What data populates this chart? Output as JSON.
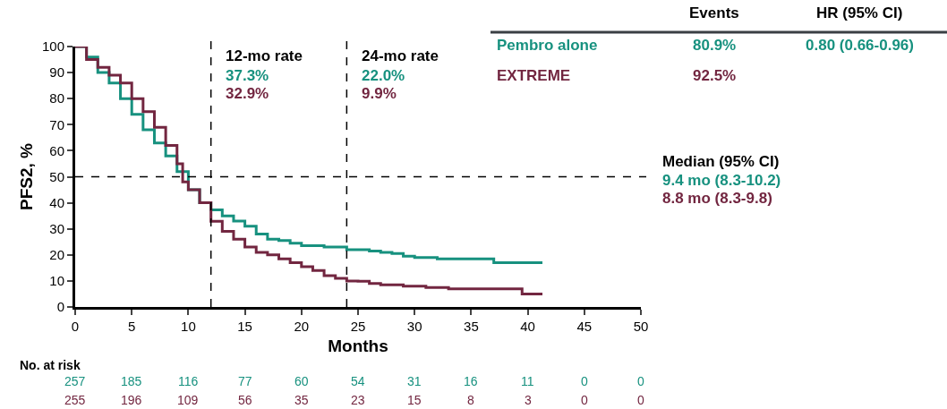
{
  "chart_data": {
    "type": "step",
    "xlabel": "Months",
    "ylabel": "PFS2, %",
    "xlim": [
      0,
      50
    ],
    "xticks": [
      0,
      5,
      10,
      15,
      20,
      25,
      30,
      35,
      40,
      45,
      50
    ],
    "ylim": [
      0,
      100
    ],
    "yticks": [
      0,
      10,
      20,
      30,
      40,
      50,
      60,
      70,
      80,
      90,
      100
    ],
    "legend": false,
    "marker": "none",
    "line_style": "solid",
    "series": [
      {
        "name": "Pembro alone",
        "color": "#17917f",
        "x": [
          0,
          1,
          2,
          3,
          4,
          5,
          6,
          7,
          8,
          9,
          10,
          11,
          12,
          13,
          14,
          15,
          16,
          17,
          18,
          19,
          20,
          22,
          24,
          26,
          27,
          28,
          29,
          30,
          32,
          34,
          36,
          37,
          41.3
        ],
        "values": [
          100,
          96,
          90,
          86,
          80,
          74,
          68,
          63,
          58,
          52,
          45,
          40,
          37.3,
          35,
          33,
          31,
          28,
          26,
          25.5,
          24.5,
          23.5,
          23,
          22,
          21.5,
          21,
          20.5,
          19.5,
          19,
          18.5,
          18.5,
          18.5,
          17,
          17
        ]
      },
      {
        "name": "EXTREME",
        "color": "#722640",
        "x": [
          0,
          1,
          2,
          3,
          4,
          5,
          6,
          7,
          8,
          9,
          9.5,
          10,
          11,
          12,
          13,
          14,
          15,
          16,
          17,
          18,
          19,
          20,
          21,
          22,
          23,
          24,
          25,
          26,
          27,
          29,
          31,
          33,
          39,
          39.5,
          41.3
        ],
        "values": [
          100,
          95,
          92,
          89,
          86,
          80,
          75,
          69,
          62,
          55,
          48,
          45,
          40,
          32.9,
          29,
          26,
          23,
          21,
          20,
          18.5,
          17,
          15.5,
          14,
          12,
          11,
          10,
          9.9,
          9,
          8.5,
          8,
          7.5,
          7,
          7,
          5,
          5
        ]
      }
    ],
    "ref_lines": [
      {
        "axis": "x",
        "value": 12,
        "color": "#000000",
        "line_style": "dashed"
      },
      {
        "axis": "x",
        "value": 24,
        "color": "#000000",
        "line_style": "dashed"
      },
      {
        "axis": "y",
        "value": 50,
        "color": "#000000",
        "line_style": "dashed"
      }
    ],
    "annotations": [
      "12-mo rate",
      "37.3%",
      "32.9%",
      "24-mo rate",
      "22.0%",
      "9.9%",
      "Events",
      "HR (95% CI)",
      "80.9%",
      "0.80 (0.66-0.96)",
      "92.5%",
      "Median (95% CI)",
      "9.4 mo (8.3-10.2)",
      "8.8 mo (8.3-9.8)",
      "No. at risk",
      "257",
      "185",
      "116",
      "77",
      "60",
      "54",
      "31",
      "16",
      "11",
      "0",
      "0",
      "255",
      "196",
      "109",
      "56",
      "35",
      "23",
      "15",
      "8",
      "3",
      "0",
      "0"
    ]
  }
}
